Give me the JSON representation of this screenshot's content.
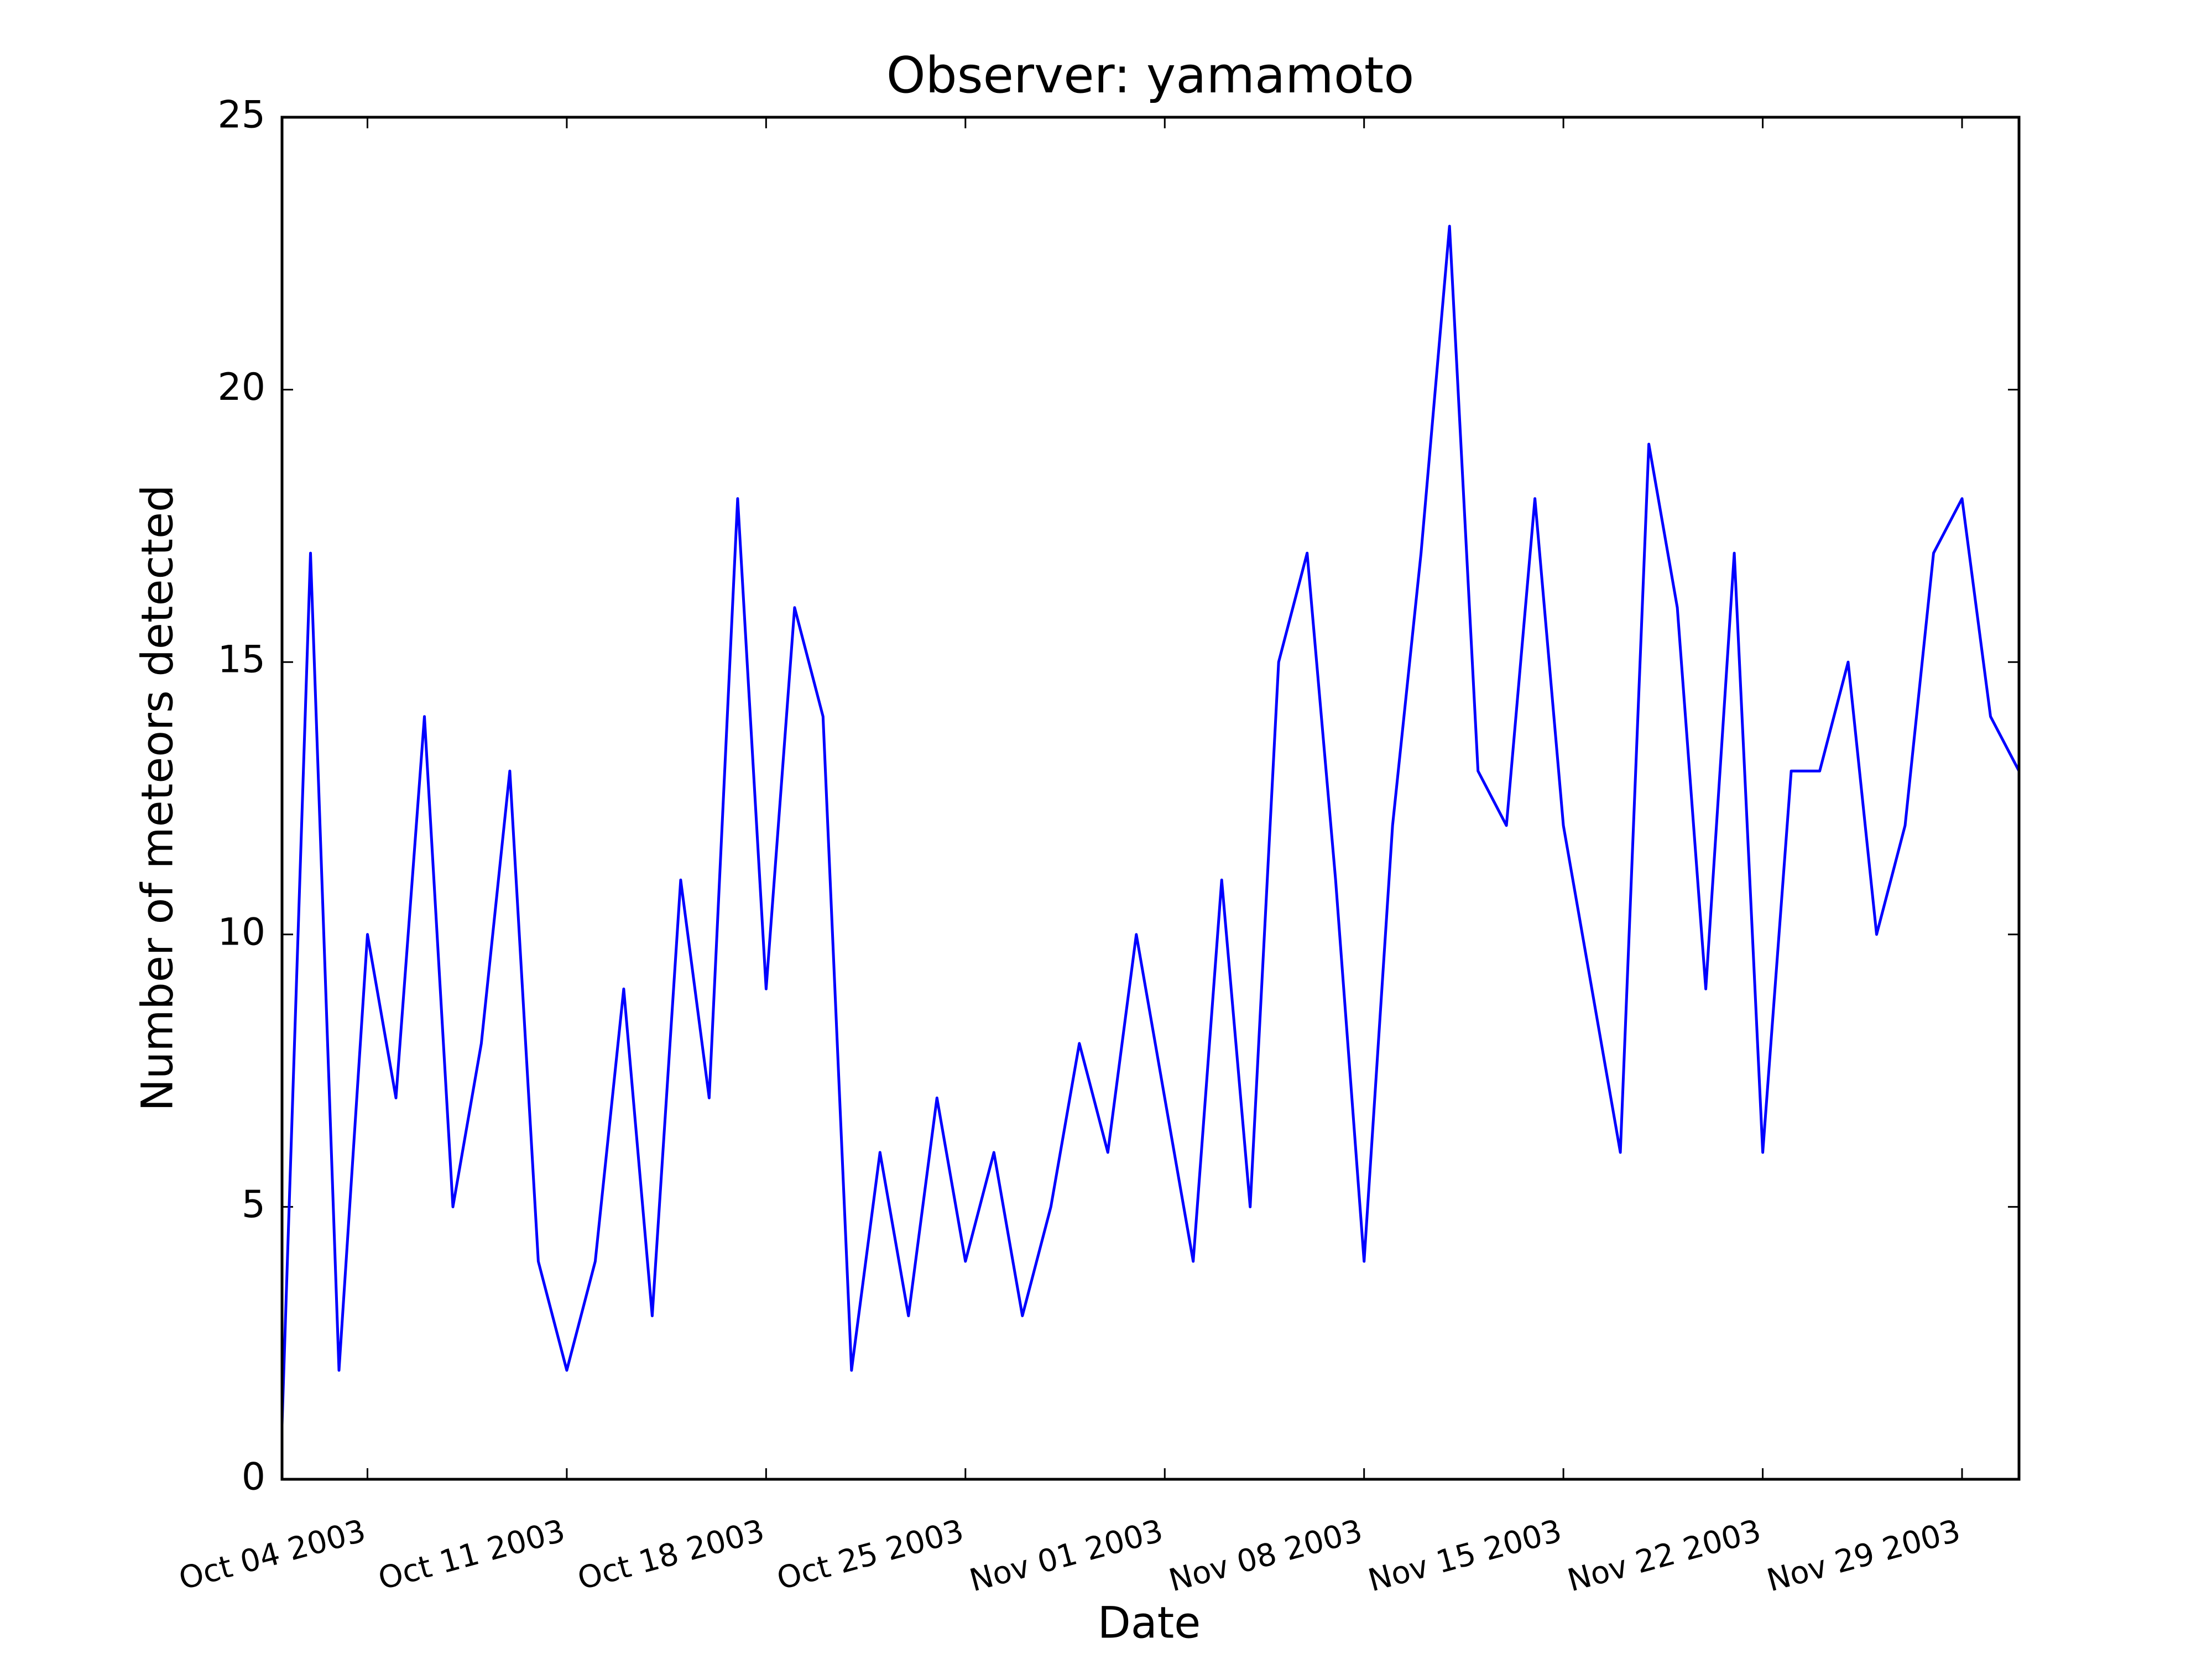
{
  "chart_data": {
    "type": "line",
    "title": "Observer: yamamoto",
    "xlabel": "Date",
    "ylabel": "Number of meteors detected",
    "x": [
      "2003-10-01",
      "2003-10-02",
      "2003-10-03",
      "2003-10-04",
      "2003-10-05",
      "2003-10-06",
      "2003-10-07",
      "2003-10-08",
      "2003-10-09",
      "2003-10-10",
      "2003-10-11",
      "2003-10-12",
      "2003-10-13",
      "2003-10-14",
      "2003-10-15",
      "2003-10-16",
      "2003-10-17",
      "2003-10-18",
      "2003-10-19",
      "2003-10-20",
      "2003-10-21",
      "2003-10-22",
      "2003-10-23",
      "2003-10-24",
      "2003-10-25",
      "2003-10-26",
      "2003-10-27",
      "2003-10-28",
      "2003-10-29",
      "2003-10-30",
      "2003-10-31",
      "2003-11-01",
      "2003-11-02",
      "2003-11-03",
      "2003-11-04",
      "2003-11-05",
      "2003-11-06",
      "2003-11-07",
      "2003-11-08",
      "2003-11-09",
      "2003-11-10",
      "2003-11-11",
      "2003-11-12",
      "2003-11-13",
      "2003-11-14",
      "2003-11-15",
      "2003-11-16",
      "2003-11-17",
      "2003-11-18",
      "2003-11-19",
      "2003-11-20",
      "2003-11-21",
      "2003-11-22",
      "2003-11-23",
      "2003-11-24",
      "2003-11-25",
      "2003-11-26",
      "2003-11-27",
      "2003-11-28",
      "2003-11-29",
      "2003-11-30",
      "2003-12-01"
    ],
    "series": [
      {
        "name": "yamamoto",
        "color": "#0000ff",
        "values": [
          1,
          17,
          2,
          10,
          7,
          14,
          5,
          8,
          13,
          4,
          2,
          4,
          9,
          3,
          11,
          7,
          18,
          9,
          16,
          14,
          2,
          6,
          3,
          7,
          4,
          6,
          3,
          5,
          8,
          6,
          10,
          7,
          4,
          11,
          5,
          15,
          17,
          11,
          4,
          12,
          17,
          23,
          13,
          12,
          18,
          12,
          9,
          6,
          19,
          16,
          9,
          17,
          6,
          13,
          13,
          15,
          10,
          12,
          17,
          18,
          14,
          13
        ]
      }
    ],
    "xlim": [
      "2003-10-01",
      "2003-12-01"
    ],
    "xticks": [
      {
        "value": "2003-10-04",
        "label": "Oct 04 2003"
      },
      {
        "value": "2003-10-11",
        "label": "Oct 11 2003"
      },
      {
        "value": "2003-10-18",
        "label": "Oct 18 2003"
      },
      {
        "value": "2003-10-25",
        "label": "Oct 25 2003"
      },
      {
        "value": "2003-11-01",
        "label": "Nov 01 2003"
      },
      {
        "value": "2003-11-08",
        "label": "Nov 08 2003"
      },
      {
        "value": "2003-11-15",
        "label": "Nov 15 2003"
      },
      {
        "value": "2003-11-22",
        "label": "Nov 22 2003"
      },
      {
        "value": "2003-11-29",
        "label": "Nov 29 2003"
      }
    ],
    "ylim": [
      0,
      25
    ],
    "yticks": [
      0,
      5,
      10,
      15,
      20,
      25
    ],
    "grid": false
  }
}
